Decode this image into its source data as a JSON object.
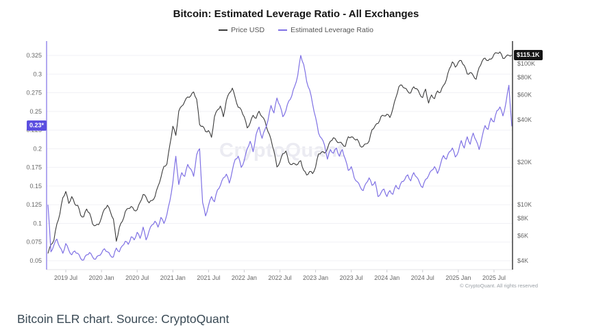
{
  "header": {
    "title": "Bitcoin: Estimated Leverage Ratio - All Exchanges"
  },
  "legend": {
    "items": [
      {
        "label": "Price USD",
        "color": "#3a3a3a"
      },
      {
        "label": "Estimated Leverage Ratio",
        "color": "#7e70e4"
      }
    ]
  },
  "badges": {
    "last_elr": "0.23*",
    "last_price": "$115.1K",
    "elr_badge_color": "#5b4ee0",
    "price_badge_color": "#141414"
  },
  "watermark": "CryptoQuant",
  "copyright": "© CryptoQuant. All rights reserved",
  "caption": "Bitcoin ELR chart. Source: CryptoQuant",
  "chart_data": {
    "type": "line",
    "title": "Bitcoin: Estimated Leverage Ratio - All Exchanges",
    "x_start_month": "2019-04",
    "x_end_month": "2025-10",
    "points_per_month": 2,
    "grid": "horizontal-only",
    "legend_position": "top-center",
    "x_ticks": [
      {
        "label": "2019 Jul",
        "month": 3
      },
      {
        "label": "2020 Jan",
        "month": 9
      },
      {
        "label": "2020 Jul",
        "month": 15
      },
      {
        "label": "2021 Jan",
        "month": 21
      },
      {
        "label": "2021 Jul",
        "month": 27
      },
      {
        "label": "2022 Jan",
        "month": 33
      },
      {
        "label": "2022 Jul",
        "month": 39
      },
      {
        "label": "2023 Jan",
        "month": 45
      },
      {
        "label": "2023 Jul",
        "month": 51
      },
      {
        "label": "2024 Jan",
        "month": 57
      },
      {
        "label": "2024 Jul",
        "month": 63
      },
      {
        "label": "2025 Jan",
        "month": 69
      },
      {
        "label": "2025 Jul",
        "month": 75
      }
    ],
    "left_axis": {
      "name": "Estimated Leverage Ratio",
      "scale": "linear",
      "range": [
        0.05,
        0.325
      ],
      "ticks": [
        "0.325",
        "0.3",
        "0.275",
        "0.25",
        "0.225",
        "0.2",
        "0.175",
        "0.15",
        "0.125",
        "0.1",
        "0.075",
        "0.05"
      ]
    },
    "right_axis": {
      "name": "Price USD",
      "scale": "log",
      "unit": "thousand USD",
      "ticks": [
        {
          "label": "$100K",
          "value": 100
        },
        {
          "label": "$80K",
          "value": 80
        },
        {
          "label": "$60K",
          "value": 60
        },
        {
          "label": "$40K",
          "value": 40
        },
        {
          "label": "$20K",
          "value": 20
        },
        {
          "label": "$10K",
          "value": 10
        },
        {
          "label": "$8K",
          "value": 8
        },
        {
          "label": "$6K",
          "value": 6
        },
        {
          "label": "$4K",
          "value": 4
        }
      ]
    },
    "series": [
      {
        "name": "Price USD",
        "axis": "right",
        "unit": "K_USD",
        "color": "#3a3a3a",
        "last_label": "$115.1K",
        "values": [
          4.5,
          5.2,
          5.6,
          7.3,
          8.6,
          11.2,
          12.4,
          10.2,
          11.4,
          10.1,
          9.9,
          8.4,
          8.2,
          9.3,
          8.7,
          7.3,
          7.1,
          7.2,
          8.1,
          9.3,
          9.9,
          8.9,
          7.9,
          5.5,
          6.9,
          7.6,
          8.9,
          9.4,
          9.7,
          9.1,
          9.2,
          10.4,
          11.8,
          11.3,
          10.3,
          10.7,
          11.4,
          13.5,
          15.6,
          18.7,
          19.4,
          26.5,
          36,
          31,
          46,
          50,
          54,
          58,
          59,
          63,
          56,
          37,
          36,
          33,
          33.5,
          30,
          42,
          47,
          50,
          42,
          55,
          62,
          67,
          57,
          49,
          47,
          42,
          35,
          38,
          43,
          41,
          46,
          42,
          39,
          33,
          29,
          24,
          18.5,
          20,
          23,
          24,
          20,
          19.2,
          19.5,
          19.3,
          20.5,
          17.5,
          16.2,
          17.2,
          16.6,
          18.5,
          22.9,
          23.6,
          23.2,
          25,
          28.2,
          29.8,
          28.3,
          27.6,
          26.9,
          25.9,
          30.3,
          30.2,
          29.2,
          29.1,
          26,
          25.9,
          27,
          28.2,
          34,
          36.2,
          37.6,
          42.2,
          42.6,
          43.8,
          41.5,
          48,
          57.5,
          68.5,
          70.5,
          67,
          63.5,
          62,
          68.5,
          66.5,
          61,
          57.5,
          66,
          52.5,
          60,
          56.5,
          64,
          62.5,
          70,
          77,
          92,
          103,
          94.5,
          102.5,
          105,
          97,
          84.5,
          86.5,
          82.5,
          77.5,
          94,
          104,
          109.5,
          105,
          107.5,
          116.5,
          119,
          121,
          109,
          112.5,
          114.5,
          115.1
        ]
      },
      {
        "name": "Estimated Leverage Ratio",
        "axis": "left",
        "color": "#7e70e4",
        "last_label": "0.23*",
        "values": [
          0.125,
          0.062,
          0.071,
          0.079,
          0.068,
          0.06,
          0.073,
          0.064,
          0.058,
          0.063,
          0.06,
          0.053,
          0.051,
          0.058,
          0.061,
          0.055,
          0.052,
          0.057,
          0.06,
          0.066,
          0.062,
          0.057,
          0.055,
          0.067,
          0.062,
          0.07,
          0.076,
          0.072,
          0.082,
          0.078,
          0.088,
          0.08,
          0.095,
          0.078,
          0.09,
          0.098,
          0.103,
          0.095,
          0.108,
          0.1,
          0.112,
          0.13,
          0.155,
          0.19,
          0.152,
          0.168,
          0.163,
          0.179,
          0.173,
          0.163,
          0.192,
          0.2,
          0.128,
          0.11,
          0.124,
          0.136,
          0.129,
          0.145,
          0.151,
          0.161,
          0.166,
          0.154,
          0.171,
          0.186,
          0.19,
          0.175,
          0.184,
          0.2,
          0.21,
          0.196,
          0.219,
          0.229,
          0.214,
          0.226,
          0.238,
          0.258,
          0.248,
          0.268,
          0.258,
          0.243,
          0.251,
          0.264,
          0.271,
          0.284,
          0.298,
          0.325,
          0.313,
          0.29,
          0.279,
          0.26,
          0.242,
          0.221,
          0.214,
          0.205,
          0.186,
          0.199,
          0.194,
          0.201,
          0.19,
          0.199,
          0.186,
          0.171,
          0.176,
          0.161,
          0.156,
          0.149,
          0.144,
          0.154,
          0.161,
          0.151,
          0.156,
          0.136,
          0.141,
          0.146,
          0.136,
          0.144,
          0.139,
          0.151,
          0.146,
          0.156,
          0.159,
          0.165,
          0.157,
          0.168,
          0.162,
          0.154,
          0.148,
          0.159,
          0.164,
          0.171,
          0.176,
          0.167,
          0.179,
          0.191,
          0.186,
          0.196,
          0.201,
          0.189,
          0.196,
          0.211,
          0.201,
          0.216,
          0.206,
          0.221,
          0.211,
          0.199,
          0.216,
          0.231,
          0.226,
          0.241,
          0.236,
          0.251,
          0.256,
          0.244,
          0.261,
          0.285,
          0.23
        ]
      }
    ]
  }
}
